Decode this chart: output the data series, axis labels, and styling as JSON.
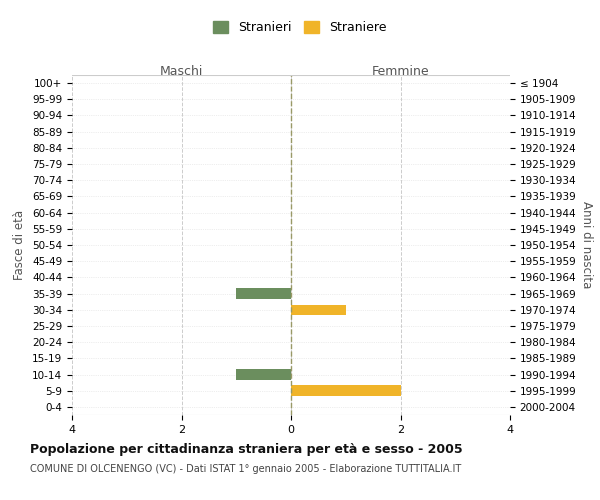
{
  "age_groups": [
    "100+",
    "95-99",
    "90-94",
    "85-89",
    "80-84",
    "75-79",
    "70-74",
    "65-69",
    "60-64",
    "55-59",
    "50-54",
    "45-49",
    "40-44",
    "35-39",
    "30-34",
    "25-29",
    "20-24",
    "15-19",
    "10-14",
    "5-9",
    "0-4"
  ],
  "birth_years": [
    "≤ 1904",
    "1905-1909",
    "1910-1914",
    "1915-1919",
    "1920-1924",
    "1925-1929",
    "1930-1934",
    "1935-1939",
    "1940-1944",
    "1945-1949",
    "1950-1954",
    "1955-1959",
    "1960-1964",
    "1965-1969",
    "1970-1974",
    "1975-1979",
    "1980-1984",
    "1985-1989",
    "1990-1994",
    "1995-1999",
    "2000-2004"
  ],
  "maschi_values": [
    0,
    0,
    0,
    0,
    0,
    0,
    0,
    0,
    0,
    0,
    0,
    0,
    0,
    1,
    0,
    0,
    0,
    0,
    1,
    0,
    0
  ],
  "femmine_values": [
    0,
    0,
    0,
    0,
    0,
    0,
    0,
    0,
    0,
    0,
    0,
    0,
    0,
    0,
    1,
    0,
    0,
    0,
    0,
    2,
    0
  ],
  "maschi_color": "#6b8e5e",
  "femmine_color": "#f0b429",
  "xlim": 4,
  "title": "Popolazione per cittadinanza straniera per età e sesso - 2005",
  "subtitle": "COMUNE DI OLCENENGO (VC) - Dati ISTAT 1° gennaio 2005 - Elaborazione TUTTITALIA.IT",
  "ylabel_left": "Fasce di età",
  "ylabel_right": "Anni di nascita",
  "legend_maschi": "Stranieri",
  "legend_femmine": "Straniere",
  "header_maschi": "Maschi",
  "header_femmine": "Femmine",
  "bg_color": "#ffffff",
  "grid_color": "#cccccc",
  "bar_height": 0.65
}
